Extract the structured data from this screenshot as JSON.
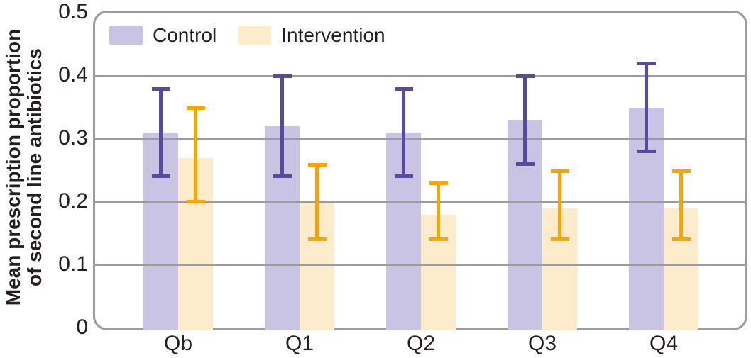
{
  "chart_data": {
    "type": "bar",
    "title": "",
    "ylabel_line1": "Mean prescription proportion",
    "ylabel_line2": "of second line antibiotics",
    "xlabel": "",
    "categories": [
      "Qb",
      "Q1",
      "Q2",
      "Q3",
      "Q4"
    ],
    "series": [
      {
        "name": "Control",
        "bar_color": "#c9c4e3",
        "error_color": "#5a49a0",
        "values": [
          0.31,
          0.32,
          0.31,
          0.33,
          0.35
        ],
        "ci_low": [
          0.24,
          0.24,
          0.24,
          0.26,
          0.28
        ],
        "ci_high": [
          0.38,
          0.4,
          0.38,
          0.4,
          0.42
        ]
      },
      {
        "name": "Intervention",
        "bar_color": "#fdeccb",
        "error_color": "#f7a600",
        "values": [
          0.27,
          0.2,
          0.18,
          0.19,
          0.19
        ],
        "ci_low": [
          0.2,
          0.14,
          0.14,
          0.14,
          0.14
        ],
        "ci_high": [
          0.35,
          0.26,
          0.23,
          0.25,
          0.25
        ]
      }
    ],
    "y_ticks": [
      "0",
      "0.1",
      "0.2",
      "0.3",
      "0.4",
      "0.5"
    ],
    "ylim": [
      0,
      0.5
    ],
    "grid": true,
    "legend_position": "top-left-inside",
    "axis_color": "#9c9c9c",
    "text_color": "#231f20"
  }
}
